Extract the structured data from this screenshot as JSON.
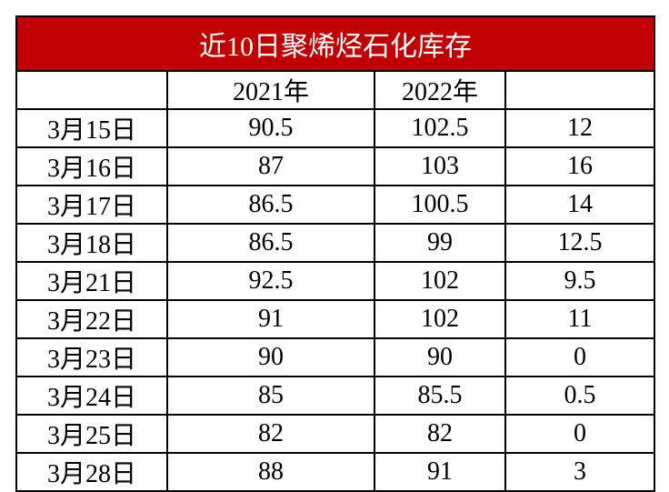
{
  "table": {
    "title": "近10日聚烯烃石化库存",
    "header": [
      "2021年",
      "2022年"
    ],
    "rows": [
      [
        "3月15日",
        90.5,
        102.5,
        12
      ],
      [
        "3月16日",
        87,
        103,
        16
      ],
      [
        "3月17日",
        86.5,
        100.5,
        14
      ],
      [
        "3月18日",
        86.5,
        99,
        12.5
      ],
      [
        "3月21日",
        92.5,
        102,
        9.5
      ],
      [
        "3月22日",
        91,
        102,
        11
      ],
      [
        "3月23日",
        90,
        90,
        0
      ],
      [
        "3月24日",
        85,
        85.5,
        0.5
      ],
      [
        "3月25日",
        82,
        82,
        0
      ],
      [
        "3月28日",
        88,
        91,
        3
      ]
    ]
  }
}
